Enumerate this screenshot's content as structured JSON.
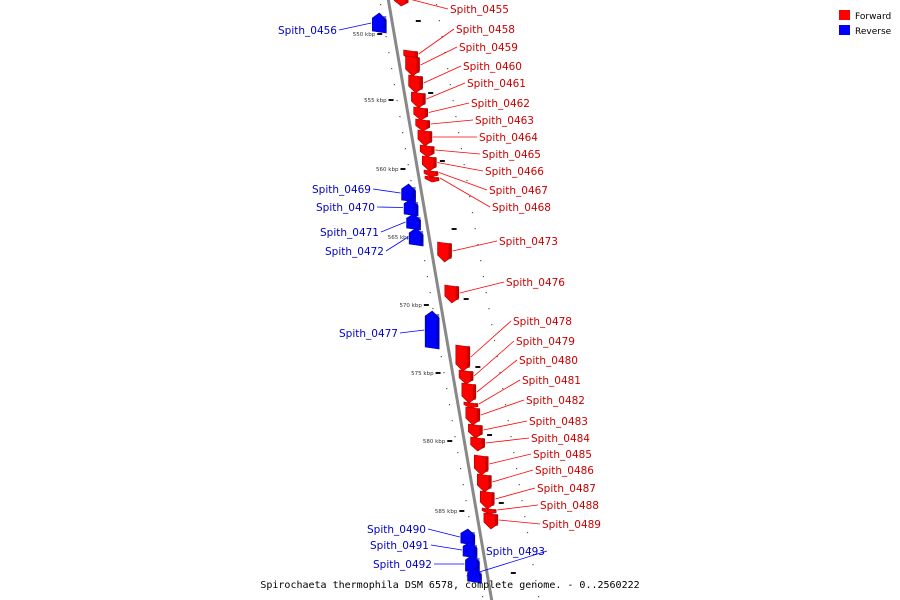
{
  "colors": {
    "forward": "#ff0000",
    "reverse": "#0000ff",
    "forward_text": "#cc0000",
    "reverse_text": "#0000cc",
    "backbone": "#888888"
  },
  "legend": {
    "forward": "Forward",
    "reverse": "Reverse"
  },
  "caption": "Spirochaeta thermophila DSM 6578, complete genome. - 0..2560222",
  "ticks": [
    {
      "label": "550 kbp"
    },
    {
      "label": "555 kbp"
    },
    {
      "label": "560 kbp"
    },
    {
      "label": "565 kbp"
    },
    {
      "label": "570 kbp"
    },
    {
      "label": "575 kbp"
    },
    {
      "label": "580 kbp"
    },
    {
      "label": "585 kbp"
    }
  ],
  "genes": [
    {
      "id": "Spith_0455",
      "strand": "forward"
    },
    {
      "id": "Spith_0456",
      "strand": "reverse"
    },
    {
      "id": "Spith_0458",
      "strand": "forward"
    },
    {
      "id": "Spith_0459",
      "strand": "forward"
    },
    {
      "id": "Spith_0460",
      "strand": "forward"
    },
    {
      "id": "Spith_0461",
      "strand": "forward"
    },
    {
      "id": "Spith_0462",
      "strand": "forward"
    },
    {
      "id": "Spith_0463",
      "strand": "forward"
    },
    {
      "id": "Spith_0464",
      "strand": "forward"
    },
    {
      "id": "Spith_0465",
      "strand": "forward"
    },
    {
      "id": "Spith_0466",
      "strand": "forward"
    },
    {
      "id": "Spith_0467",
      "strand": "forward"
    },
    {
      "id": "Spith_0468",
      "strand": "forward"
    },
    {
      "id": "Spith_0469",
      "strand": "reverse"
    },
    {
      "id": "Spith_0470",
      "strand": "reverse"
    },
    {
      "id": "Spith_0471",
      "strand": "reverse"
    },
    {
      "id": "Spith_0472",
      "strand": "reverse"
    },
    {
      "id": "Spith_0473",
      "strand": "forward"
    },
    {
      "id": "Spith_0476",
      "strand": "forward"
    },
    {
      "id": "Spith_0477",
      "strand": "reverse"
    },
    {
      "id": "Spith_0478",
      "strand": "forward"
    },
    {
      "id": "Spith_0479",
      "strand": "forward"
    },
    {
      "id": "Spith_0480",
      "strand": "forward"
    },
    {
      "id": "Spith_0481",
      "strand": "forward"
    },
    {
      "id": "Spith_0482",
      "strand": "forward"
    },
    {
      "id": "Spith_0483",
      "strand": "forward"
    },
    {
      "id": "Spith_0484",
      "strand": "forward"
    },
    {
      "id": "Spith_0485",
      "strand": "forward"
    },
    {
      "id": "Spith_0486",
      "strand": "forward"
    },
    {
      "id": "Spith_0487",
      "strand": "forward"
    },
    {
      "id": "Spith_0488",
      "strand": "forward"
    },
    {
      "id": "Spith_0489",
      "strand": "forward"
    },
    {
      "id": "Spith_0490",
      "strand": "reverse"
    },
    {
      "id": "Spith_0491",
      "strand": "reverse"
    },
    {
      "id": "Spith_0492",
      "strand": "reverse"
    },
    {
      "id": "Spith_0493",
      "strand": "reverse"
    }
  ]
}
